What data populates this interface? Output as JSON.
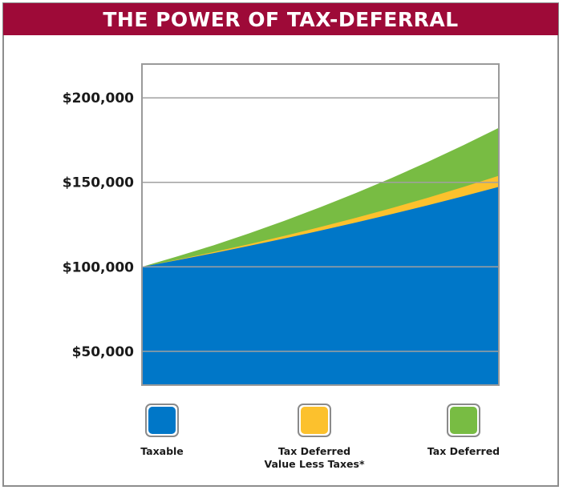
{
  "title": "THE POWER OF TAX-DEFERRAL",
  "colors": {
    "title_bg": "#9e0a38",
    "taxable": "#0077c8",
    "tax_deferred_less_taxes": "#fcc12d",
    "tax_deferred": "#78bc43",
    "grid": "#a0a0a0"
  },
  "chart_data": {
    "type": "area",
    "title": "THE POWER OF TAX-DEFERRAL",
    "xlabel": "",
    "ylabel": "",
    "ylim": [
      30000,
      220000
    ],
    "yticks": [
      50000,
      100000,
      150000,
      200000
    ],
    "ytick_labels": [
      "$50,000",
      "$100,000",
      "$150,000",
      "$200,000"
    ],
    "grid": true,
    "x": [
      0,
      1,
      2,
      3,
      4,
      5,
      6,
      7,
      8,
      9,
      10
    ],
    "series": [
      {
        "name": "Taxable",
        "color": "#0077c8",
        "values": [
          100000,
          103965,
          108080,
          112357,
          116800,
          121418,
          126216,
          131200,
          136378,
          141758,
          147347
        ]
      },
      {
        "name": "Tax Deferred\nValue Less Taxes*",
        "color": "#fcc12d",
        "values": [
          100000,
          104250,
          108720,
          113420,
          118360,
          123560,
          129030,
          134780,
          140830,
          147200,
          153900
        ]
      },
      {
        "name": "Tax Deferred",
        "color": "#78bc43",
        "values": [
          100000,
          106200,
          112700,
          119800,
          127300,
          135300,
          143700,
          152600,
          162000,
          171900,
          182300
        ]
      }
    ],
    "legend": [
      {
        "label": "Taxable",
        "color": "#0077c8"
      },
      {
        "label": "Tax Deferred\nValue Less Taxes*",
        "color": "#fcc12d"
      },
      {
        "label": "Tax Deferred",
        "color": "#78bc43"
      }
    ],
    "legend_position": "bottom"
  }
}
